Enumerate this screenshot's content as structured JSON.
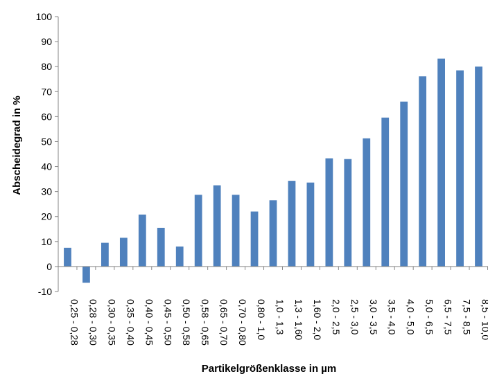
{
  "chart_data": {
    "type": "bar",
    "xlabel": "Partikelgrößenklasse in µm",
    "ylabel": "Abscheidegrad in %",
    "ylim": [
      -10,
      100
    ],
    "yticks": [
      -10,
      0,
      10,
      20,
      30,
      40,
      50,
      60,
      70,
      80,
      90,
      100
    ],
    "grid": false,
    "legend": "none",
    "bar_color": "#4F81BD",
    "categories": [
      "0,25 - 0,28",
      "0,28 - 0,30",
      "0,30 - 0,35",
      "0,35 - 0,40",
      "0,40 - 0,45",
      "0,45 - 0,50",
      "0,50 - 0,58",
      "0,58 - 0,65",
      "0,65 - 0,70",
      "0,70 - 0,80",
      "0,80 - 1,0",
      "1,0 - 1,3",
      "1,3 - 1,60",
      "1,60 - 2,0",
      "2,0 - 2,5",
      "2,5 - 3,0",
      "3,0 - 3,5",
      "3,5 - 4,0",
      "4,0 - 5,0",
      "5,0 - 6,5",
      "6,5 - 7,5",
      "7,5 - 8,5",
      "8,5 - 10,0"
    ],
    "values": [
      7.5,
      -6.5,
      9.5,
      11.5,
      20.8,
      15.5,
      8.0,
      28.7,
      32.5,
      28.7,
      22.0,
      26.5,
      34.3,
      33.6,
      43.3,
      43.0,
      51.3,
      59.6,
      66.0,
      76.1,
      83.2,
      78.5,
      80.0
    ]
  }
}
